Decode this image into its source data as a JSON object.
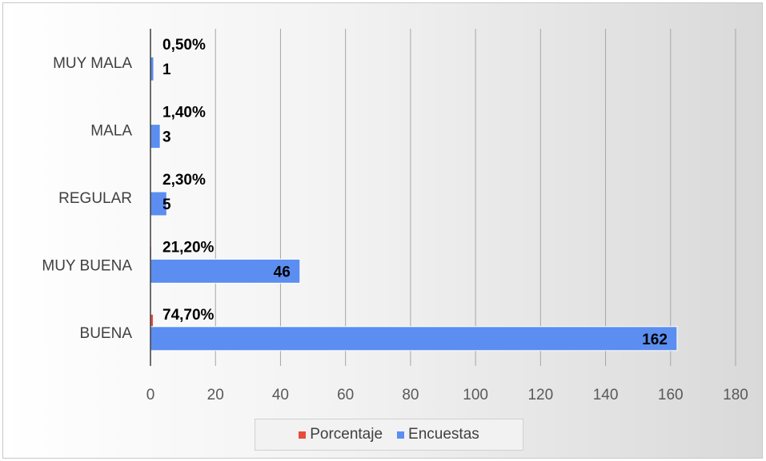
{
  "chart_data": {
    "type": "bar",
    "orientation": "horizontal",
    "categories": [
      "BUENA",
      "MUY BUENA",
      "REGULAR",
      "MALA",
      "MUY MALA"
    ],
    "series": [
      {
        "name": "Porcentaje",
        "color": "#e84c3d",
        "values": [
          74.7,
          21.2,
          2.3,
          1.4,
          0.5
        ],
        "labels": [
          "74,70%",
          "21,20%",
          "2,30%",
          "1,40%",
          "0,50%"
        ]
      },
      {
        "name": "Encuestas",
        "color": "#5b8ef0",
        "values": [
          162,
          46,
          5,
          3,
          1
        ],
        "labels": [
          "162",
          "46",
          "5",
          "3",
          "1"
        ]
      }
    ],
    "xlim": [
      0,
      180
    ],
    "xticks": [
      "0",
      "20",
      "40",
      "60",
      "80",
      "100",
      "120",
      "140",
      "160",
      "180"
    ],
    "grid": true,
    "legend": "bottom"
  }
}
